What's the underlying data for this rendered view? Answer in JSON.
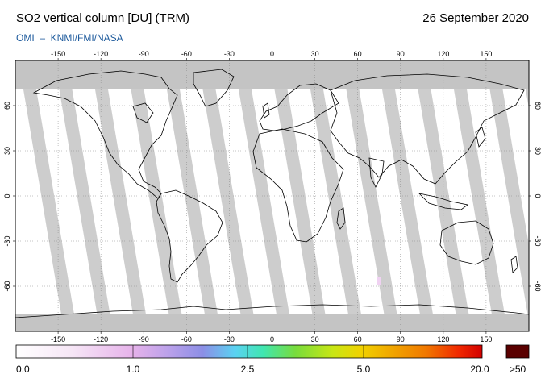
{
  "header": {
    "title": "SO2 vertical column [DU] (TRM)",
    "date": "26 September 2020",
    "source": "OMI  –  KNMI/FMI/NASA"
  },
  "map": {
    "projection": "equirectangular",
    "lon_range": [
      -180,
      180
    ],
    "lat_range": [
      -90,
      90
    ],
    "lon_ticks": [
      -150,
      -120,
      -90,
      -60,
      -30,
      0,
      30,
      60,
      90,
      120,
      150
    ],
    "lat_ticks": [
      60,
      30,
      0,
      -30,
      -60
    ],
    "colors": {
      "no_data": "#c4c4c4",
      "ocean": "#ffffff",
      "land_outline": "#000000",
      "grid": "#888888"
    }
  },
  "colorbar": {
    "label_0": "0.0",
    "label_1": "1.0",
    "label_2": "2.5",
    "label_3": "5.0",
    "label_4": "20.0",
    "label_over": ">50",
    "over_color": "#5a0000"
  }
}
